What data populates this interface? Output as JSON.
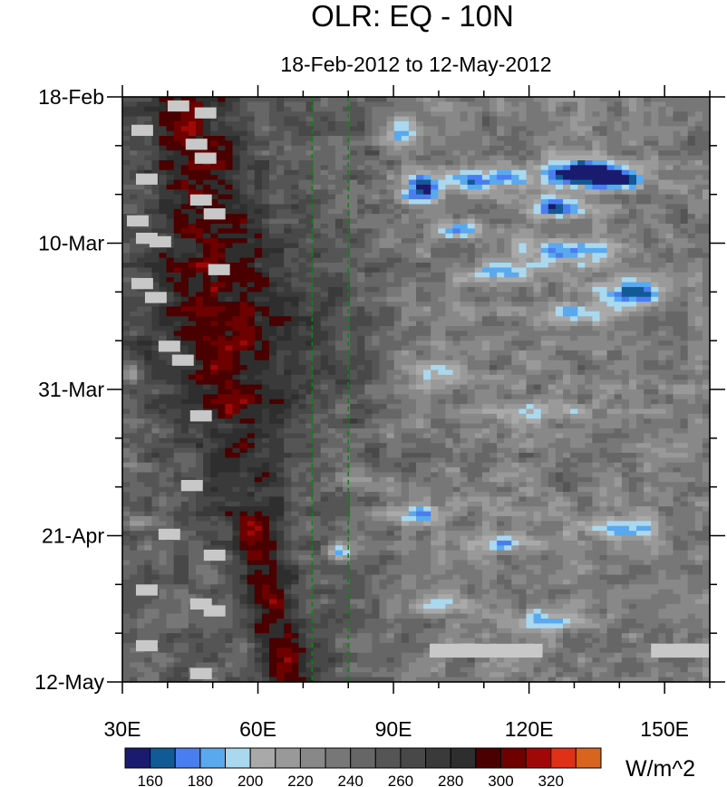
{
  "chart_data": {
    "type": "heatmap",
    "title": "OLR: EQ - 10N",
    "subtitle": "18-Feb-2012 to 12-May-2012",
    "xlabel": "",
    "ylabel": "",
    "x_axis": {
      "range_deg_east": [
        30,
        160
      ],
      "ticks": [
        {
          "value": 30,
          "label": "30E"
        },
        {
          "value": 60,
          "label": "60E"
        },
        {
          "value": 90,
          "label": "90E"
        },
        {
          "value": 120,
          "label": "120E"
        },
        {
          "value": 150,
          "label": "150E"
        }
      ]
    },
    "y_axis": {
      "range_days_from_top": [
        0,
        84
      ],
      "direction": "time increases downward",
      "ticks": [
        {
          "value": 0,
          "label": "18-Feb"
        },
        {
          "value": 21,
          "label": "10-Mar"
        },
        {
          "value": 42,
          "label": "31-Mar"
        },
        {
          "value": 63,
          "label": "21-Apr"
        },
        {
          "value": 84,
          "label": "12-May"
        }
      ]
    },
    "reference_lines": {
      "style": "dashed",
      "color": "#1e7a1e",
      "x_values": [
        72,
        80
      ]
    },
    "colorbar": {
      "units": "W/m^2",
      "levels": [
        160,
        170,
        180,
        190,
        200,
        210,
        220,
        230,
        240,
        250,
        260,
        270,
        280,
        290,
        300,
        310,
        320
      ],
      "labels": [
        "160",
        "180",
        "200",
        "220",
        "240",
        "260",
        "280",
        "300",
        "320"
      ],
      "colors": [
        "#1a1a6e",
        "#115a96",
        "#4a7ef0",
        "#5aa8ee",
        "#aad8ee",
        "#a9a9a9",
        "#999999",
        "#888888",
        "#777777",
        "#666666",
        "#555555",
        "#484848",
        "#3a3a3a",
        "#2e2e2e",
        "#4a0000",
        "#6e0000",
        "#a00808",
        "#e03018",
        "#d86420"
      ]
    },
    "missing_data_color": "#c8c8c8"
  }
}
